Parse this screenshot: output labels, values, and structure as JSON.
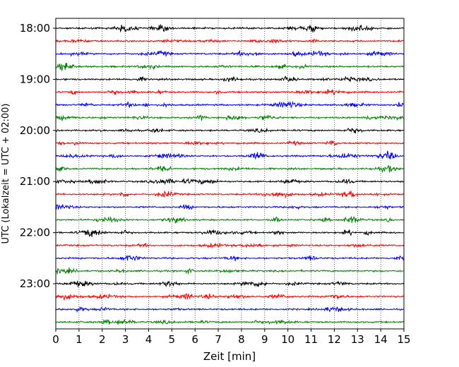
{
  "chart_data": {
    "type": "line",
    "title": "",
    "xlabel": "Zeit  [min]",
    "ylabel": "UTC (Lokalzeit = UTC + 02:00)",
    "xlim": [
      0,
      15
    ],
    "x_ticks": [
      0,
      1,
      2,
      3,
      4,
      5,
      6,
      7,
      8,
      9,
      10,
      11,
      12,
      13,
      14,
      15
    ],
    "x_tick_labels": [
      "0",
      "1",
      "2",
      "3",
      "4",
      "5",
      "6",
      "7",
      "8",
      "9",
      "10",
      "11",
      "12",
      "13",
      "14",
      "15"
    ],
    "y_tick_labels": [
      "18:00",
      "19:00",
      "20:00",
      "21:00",
      "22:00",
      "23:00"
    ],
    "grid": "vertical dotted lines at each minute",
    "trace_interval_minutes": 15,
    "color_cycle": [
      "#000000",
      "#ff0000",
      "#0000ff",
      "#008000"
    ],
    "series": [
      {
        "start": "18:00"
      },
      {
        "start": "18:15"
      },
      {
        "start": "18:30"
      },
      {
        "start": "18:45"
      },
      {
        "start": "19:00"
      },
      {
        "start": "19:15"
      },
      {
        "start": "19:30"
      },
      {
        "start": "19:45"
      },
      {
        "start": "20:00"
      },
      {
        "start": "20:15"
      },
      {
        "start": "20:30"
      },
      {
        "start": "20:45"
      },
      {
        "start": "21:00"
      },
      {
        "start": "21:15"
      },
      {
        "start": "21:30"
      },
      {
        "start": "21:45"
      },
      {
        "start": "22:00"
      },
      {
        "start": "22:15"
      },
      {
        "start": "22:30"
      },
      {
        "start": "22:45"
      },
      {
        "start": "23:00"
      },
      {
        "start": "23:15"
      },
      {
        "start": "23:30"
      },
      {
        "start": "23:45"
      }
    ]
  }
}
